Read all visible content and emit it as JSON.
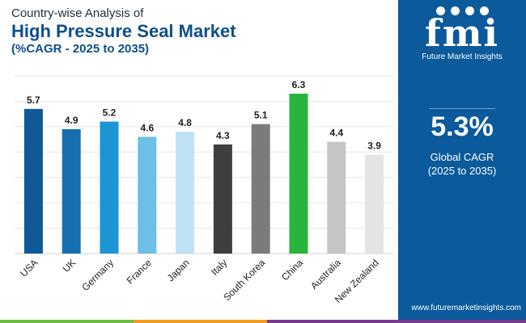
{
  "header": {
    "subtitle": "Country-wise Analysis of",
    "title": "High Pressure Seal Market",
    "cagr_period": "(%CAGR - 2025 to 2035)"
  },
  "side_panel": {
    "brand": "fmi",
    "brand_tagline": "Future Market Insights",
    "cagr_value": "5.3%",
    "cagr_label": "Global CAGR",
    "cagr_range": "(2025 to 2035)",
    "url": "www.futuremarketinsights.com",
    "background_color": "#0a5a9c"
  },
  "chart_data": {
    "type": "bar",
    "categories": [
      "USA",
      "UK",
      "Germany",
      "France",
      "Japan",
      "Italy",
      "South Korea",
      "China",
      "Australia",
      "New Zealand"
    ],
    "values": [
      5.7,
      4.9,
      5.2,
      4.6,
      4.8,
      4.3,
      5.1,
      6.3,
      4.4,
      3.9
    ],
    "colors": [
      "#0f5a96",
      "#1670b0",
      "#1c95d4",
      "#6cbfe6",
      "#bfe2f5",
      "#3f3f3f",
      "#7b7b7b",
      "#27b53c",
      "#c5c5c5",
      "#e4e4e4"
    ],
    "ylim": [
      0,
      7
    ],
    "grid": true
  }
}
